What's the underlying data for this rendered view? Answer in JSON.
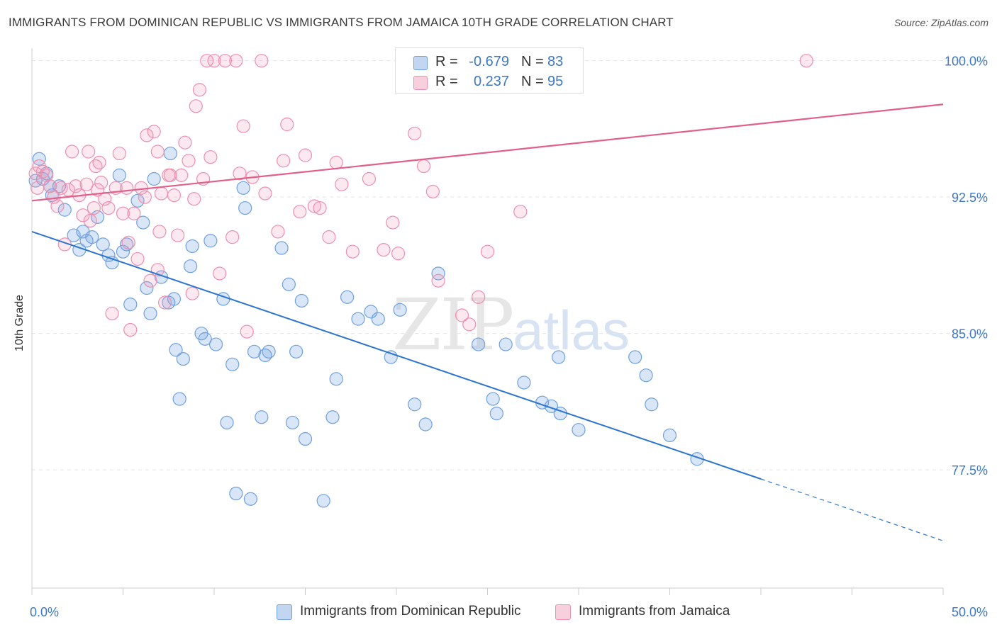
{
  "header": {
    "title": "IMMIGRANTS FROM DOMINICAN REPUBLIC VS IMMIGRANTS FROM JAMAICA 10TH GRADE CORRELATION CHART",
    "source": "Source: ZipAtlas.com"
  },
  "watermark": {
    "zip": "ZIP",
    "atlas": "atlas"
  },
  "legend": {
    "rows": [
      {
        "r_label": "R =",
        "r_value": "-0.679",
        "n_label": "N =",
        "n_value": "83",
        "color": "#6fa0e0"
      },
      {
        "r_label": "R =",
        "r_value": "0.237",
        "n_label": "N =",
        "n_value": "95",
        "color": "#ee8fae"
      }
    ]
  },
  "bottom_legend": {
    "items": [
      "Immigrants from Dominican Republic",
      "Immigrants from Jamaica"
    ]
  },
  "colors": {
    "blue_stroke": "#6fa0e0",
    "blue_fill": "rgba(120,165,225,0.28)",
    "blue_line": "#2c74d0",
    "pink_stroke": "#ee8fae",
    "pink_fill": "rgba(240,150,180,0.22)",
    "pink_line": "#e0608a",
    "value_text": "#3d78c8",
    "grid": "#e4e4e4"
  },
  "chart_data": {
    "type": "scatter",
    "title": "IMMIGRANTS FROM DOMINICAN REPUBLIC VS IMMIGRANTS FROM JAMAICA 10TH GRADE CORRELATION CHART",
    "xlabel": "",
    "ylabel": "10th Grade",
    "xlim": [
      0,
      50
    ],
    "ylim": [
      71.0,
      101.0
    ],
    "x_tick_labels": [
      "0.0%",
      "50.0%"
    ],
    "y_ticks": [
      77.5,
      85.0,
      92.5,
      100.0
    ],
    "y_tick_labels": [
      "77.5%",
      "85.0%",
      "92.5%",
      "100.0%"
    ],
    "grid": true,
    "legend_position": "top-center",
    "series": [
      {
        "name": "Immigrants from Dominican Republic",
        "trend": {
          "x0": 0,
          "y0": 90.6,
          "x1": 40,
          "y1": 77.0,
          "dash_to_x": 50,
          "dash_to_y": 73.6
        },
        "points": [
          [
            0.4,
            94.6
          ],
          [
            0.6,
            93.5
          ],
          [
            0.8,
            93.8
          ],
          [
            1.0,
            93.1
          ],
          [
            1.1,
            92.6
          ],
          [
            1.5,
            93.1
          ],
          [
            1.8,
            91.8
          ],
          [
            2.3,
            90.4
          ],
          [
            2.6,
            89.6
          ],
          [
            2.8,
            90.6
          ],
          [
            3.0,
            90.1
          ],
          [
            3.3,
            90.3
          ],
          [
            3.6,
            91.4
          ],
          [
            3.9,
            89.9
          ],
          [
            4.2,
            89.3
          ],
          [
            4.4,
            88.9
          ],
          [
            4.8,
            93.7
          ],
          [
            5.0,
            89.5
          ],
          [
            5.2,
            89.9
          ],
          [
            5.4,
            86.6
          ],
          [
            5.8,
            92.3
          ],
          [
            6.1,
            91.1
          ],
          [
            6.3,
            87.5
          ],
          [
            6.5,
            86.1
          ],
          [
            6.7,
            93.5
          ],
          [
            7.1,
            88.1
          ],
          [
            7.5,
            86.7
          ],
          [
            7.6,
            94.9
          ],
          [
            7.8,
            86.9
          ],
          [
            7.9,
            84.1
          ],
          [
            8.1,
            81.4
          ],
          [
            8.3,
            83.6
          ],
          [
            8.7,
            88.7
          ],
          [
            8.8,
            89.8
          ],
          [
            9.3,
            85.0
          ],
          [
            9.5,
            84.7
          ],
          [
            9.8,
            90.1
          ],
          [
            10.1,
            84.4
          ],
          [
            10.5,
            86.9
          ],
          [
            10.7,
            80.1
          ],
          [
            11.0,
            83.3
          ],
          [
            11.2,
            76.2
          ],
          [
            11.6,
            93.0
          ],
          [
            11.7,
            91.9
          ],
          [
            12.0,
            75.9
          ],
          [
            12.2,
            84.0
          ],
          [
            12.6,
            80.4
          ],
          [
            12.8,
            83.8
          ],
          [
            13.0,
            84.0
          ],
          [
            13.7,
            89.7
          ],
          [
            14.1,
            87.7
          ],
          [
            14.3,
            80.1
          ],
          [
            14.5,
            84.0
          ],
          [
            14.8,
            86.8
          ],
          [
            15.0,
            79.2
          ],
          [
            16.0,
            75.8
          ],
          [
            16.5,
            80.4
          ],
          [
            16.7,
            82.5
          ],
          [
            17.3,
            87.0
          ],
          [
            17.9,
            85.8
          ],
          [
            18.6,
            86.2
          ],
          [
            19.0,
            85.8
          ],
          [
            19.7,
            83.7
          ],
          [
            20.2,
            86.3
          ],
          [
            21.0,
            81.1
          ],
          [
            21.6,
            80.0
          ],
          [
            22.3,
            88.3
          ],
          [
            24.5,
            84.4
          ],
          [
            25.3,
            81.4
          ],
          [
            25.5,
            80.6
          ],
          [
            26.0,
            84.4
          ],
          [
            27.0,
            82.3
          ],
          [
            28.0,
            81.2
          ],
          [
            28.5,
            81.0
          ],
          [
            28.9,
            83.7
          ],
          [
            29.0,
            80.6
          ],
          [
            30.0,
            79.7
          ],
          [
            33.1,
            83.7
          ],
          [
            33.7,
            82.7
          ],
          [
            34.0,
            81.1
          ],
          [
            35.0,
            79.4
          ],
          [
            36.5,
            78.1
          ],
          [
            0.2,
            93.4
          ]
        ]
      },
      {
        "name": "Immigrants from Jamaica",
        "trend": {
          "x0": 0,
          "y0": 92.3,
          "x1": 50,
          "y1": 97.6
        },
        "points": [
          [
            0.2,
            93.8
          ],
          [
            0.4,
            94.2
          ],
          [
            0.6,
            93.9
          ],
          [
            0.8,
            93.7
          ],
          [
            1.0,
            93.1
          ],
          [
            1.2,
            92.5
          ],
          [
            1.4,
            92.0
          ],
          [
            1.6,
            93.0
          ],
          [
            1.8,
            89.9
          ],
          [
            2.0,
            92.9
          ],
          [
            2.2,
            95.0
          ],
          [
            2.4,
            93.1
          ],
          [
            2.6,
            92.6
          ],
          [
            2.8,
            91.5
          ],
          [
            3.0,
            93.2
          ],
          [
            3.1,
            95.0
          ],
          [
            3.2,
            91.2
          ],
          [
            3.4,
            91.9
          ],
          [
            3.5,
            94.2
          ],
          [
            3.6,
            92.9
          ],
          [
            3.7,
            94.4
          ],
          [
            3.8,
            93.3
          ],
          [
            4.0,
            92.4
          ],
          [
            4.2,
            91.9
          ],
          [
            4.4,
            86.1
          ],
          [
            4.6,
            93.0
          ],
          [
            4.8,
            94.9
          ],
          [
            5.0,
            91.6
          ],
          [
            5.2,
            93.0
          ],
          [
            5.4,
            85.2
          ],
          [
            5.6,
            91.6
          ],
          [
            5.8,
            89.1
          ],
          [
            6.0,
            93.0
          ],
          [
            6.2,
            92.5
          ],
          [
            6.3,
            95.9
          ],
          [
            6.5,
            87.9
          ],
          [
            6.7,
            96.1
          ],
          [
            6.9,
            95.0
          ],
          [
            7.0,
            90.6
          ],
          [
            7.1,
            92.7
          ],
          [
            7.3,
            86.7
          ],
          [
            7.5,
            93.7
          ],
          [
            7.6,
            93.7
          ],
          [
            7.8,
            92.6
          ],
          [
            8.0,
            90.4
          ],
          [
            8.2,
            93.7
          ],
          [
            8.4,
            95.5
          ],
          [
            8.6,
            94.5
          ],
          [
            8.8,
            87.2
          ],
          [
            8.9,
            92.4
          ],
          [
            9.0,
            97.5
          ],
          [
            9.2,
            98.4
          ],
          [
            9.4,
            93.5
          ],
          [
            9.6,
            100.0
          ],
          [
            9.8,
            94.7
          ],
          [
            10.0,
            100.0
          ],
          [
            10.3,
            88.3
          ],
          [
            10.6,
            100.0
          ],
          [
            11.0,
            90.3
          ],
          [
            11.2,
            100.0
          ],
          [
            11.4,
            93.8
          ],
          [
            11.6,
            96.4
          ],
          [
            11.8,
            85.1
          ],
          [
            12.1,
            93.6
          ],
          [
            12.6,
            100.0
          ],
          [
            12.8,
            92.7
          ],
          [
            13.5,
            90.6
          ],
          [
            13.8,
            94.5
          ],
          [
            14.0,
            96.5
          ],
          [
            14.7,
            91.7
          ],
          [
            15.0,
            94.8
          ],
          [
            15.5,
            92.0
          ],
          [
            15.8,
            91.9
          ],
          [
            16.3,
            90.3
          ],
          [
            16.7,
            94.4
          ],
          [
            17.0,
            93.2
          ],
          [
            17.6,
            89.5
          ],
          [
            18.5,
            93.5
          ],
          [
            19.3,
            89.6
          ],
          [
            19.8,
            91.1
          ],
          [
            20.1,
            89.4
          ],
          [
            20.8,
            100.0
          ],
          [
            21.0,
            96.0
          ],
          [
            21.5,
            94.2
          ],
          [
            22.0,
            92.8
          ],
          [
            22.3,
            87.9
          ],
          [
            23.6,
            86.0
          ],
          [
            24.0,
            85.5
          ],
          [
            24.5,
            87.0
          ],
          [
            25.0,
            89.5
          ],
          [
            26.8,
            91.7
          ],
          [
            42.5,
            100.0
          ],
          [
            5.3,
            90.0
          ],
          [
            6.9,
            88.5
          ],
          [
            0.3,
            93.0
          ]
        ]
      }
    ]
  }
}
